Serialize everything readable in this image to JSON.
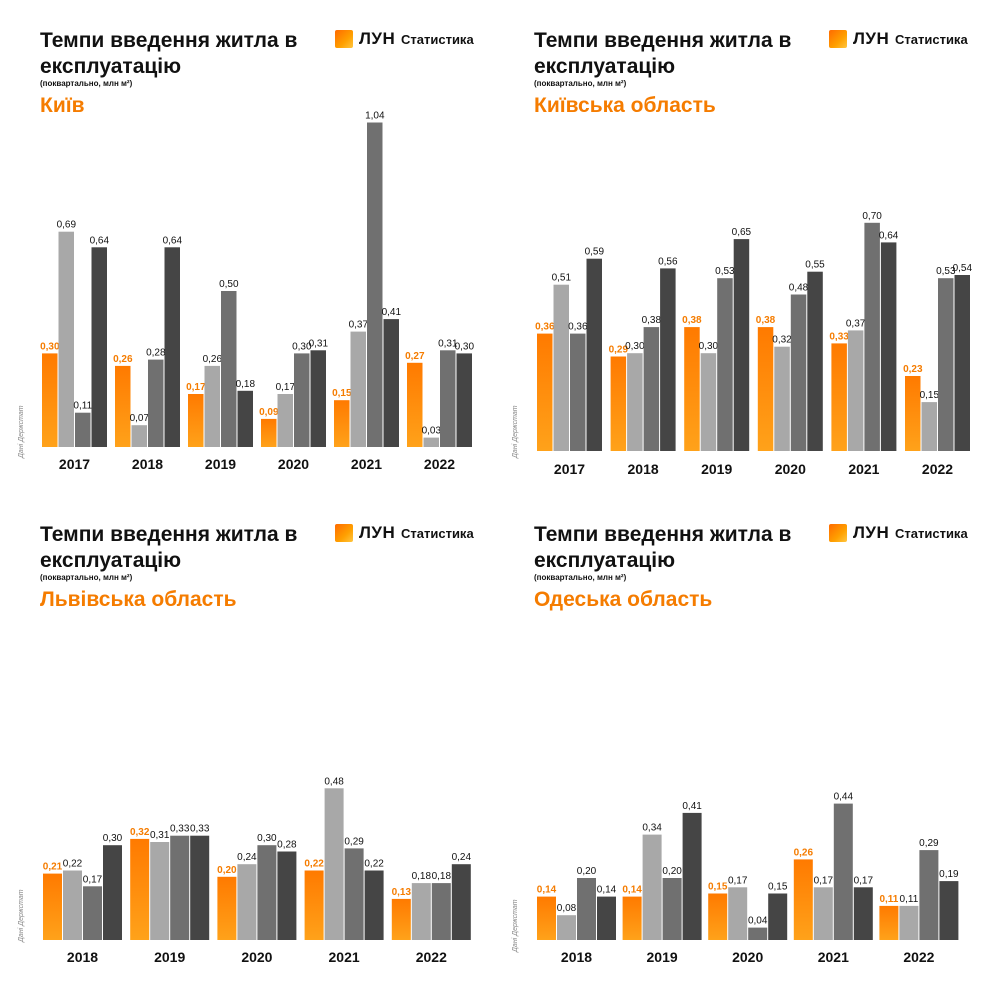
{
  "colors": {
    "orange": "#ff8c00",
    "orange_label": "#f57c00",
    "q2": "#a8a8a8",
    "q3": "#707070",
    "q4": "#454545"
  },
  "common": {
    "title": "Темпи введення житла в експлуатацію",
    "subtitle": "(поквартально, млн м²)",
    "logo_word": "ЛУН",
    "logo_stat": "Статистика",
    "logo_icon": "lun-logo-icon",
    "source": "Дані Держстат"
  },
  "chart_data": [
    {
      "type": "bar",
      "region": "Київ",
      "categories": [
        "2017",
        "2018",
        "2019",
        "2020",
        "2021",
        "2022"
      ],
      "values": [
        [
          "0,30",
          "0,69",
          "0,11",
          "0,64"
        ],
        [
          "0,26",
          "0,07",
          "0,28",
          "0,64"
        ],
        [
          "0,17",
          "0,26",
          "0,50",
          "0,18"
        ],
        [
          "0,09",
          "0,17",
          "0,30",
          "0,31"
        ],
        [
          "0,15",
          "0,37",
          "1,04",
          "0,41"
        ],
        [
          "0,27",
          "0,03",
          "0,31",
          "0,30"
        ]
      ]
    },
    {
      "type": "bar",
      "region": "Київська область",
      "categories": [
        "2017",
        "2018",
        "2019",
        "2020",
        "2021",
        "2022"
      ],
      "values": [
        [
          "0,36",
          "0,51",
          "0,36",
          "0,59"
        ],
        [
          "0,29",
          "0,30",
          "0,38",
          "0,56"
        ],
        [
          "0,38",
          "0,30",
          "0,53",
          "0,65"
        ],
        [
          "0,38",
          "0,32",
          "0,48",
          "0,55"
        ],
        [
          "0,33",
          "0,37",
          "0,70",
          "0,64"
        ],
        [
          "0,23",
          "0,15",
          "0,53",
          "0,54"
        ]
      ]
    },
    {
      "type": "bar",
      "region": "Львівська область",
      "categories": [
        "2018",
        "2019",
        "2020",
        "2021",
        "2022"
      ],
      "values": [
        [
          "0,21",
          "0,22",
          "0,17",
          "0,30"
        ],
        [
          "0,32",
          "0,31",
          "0,33",
          "0,33"
        ],
        [
          "0,20",
          "0,24",
          "0,30",
          "0,28"
        ],
        [
          "0,22",
          "0,48",
          "0,29",
          "0,22"
        ],
        [
          "0,13",
          "0,18",
          "0,18",
          "0,24"
        ]
      ]
    },
    {
      "type": "bar",
      "region": "Одеська область",
      "categories": [
        "2018",
        "2019",
        "2020",
        "2021",
        "2022"
      ],
      "values": [
        [
          "0,14",
          "0,08",
          "0,20",
          "0,14"
        ],
        [
          "0,14",
          "0,34",
          "0,20",
          "0,41"
        ],
        [
          "0,15",
          "0,17",
          "0,04",
          "0,15"
        ],
        [
          "0,26",
          "0,17",
          "0,44",
          "0,17"
        ],
        [
          "0,11",
          "0,11",
          "0,29",
          "0,19"
        ]
      ]
    }
  ]
}
